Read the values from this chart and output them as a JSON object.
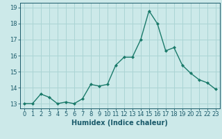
{
  "x": [
    0,
    1,
    2,
    3,
    4,
    5,
    6,
    7,
    8,
    9,
    10,
    11,
    12,
    13,
    14,
    15,
    16,
    17,
    18,
    19,
    20,
    21,
    22,
    23
  ],
  "y": [
    13.0,
    13.0,
    13.6,
    13.4,
    13.0,
    13.1,
    13.0,
    13.3,
    14.2,
    14.1,
    14.2,
    15.4,
    15.9,
    15.9,
    17.0,
    18.8,
    18.0,
    16.3,
    16.5,
    15.4,
    14.9,
    14.5,
    14.3,
    13.9
  ],
  "line_color": "#1a7a6a",
  "marker": "D",
  "marker_size": 2,
  "bg_color": "#cce9e9",
  "grid_color": "#aad4d4",
  "xlabel": "Humidex (Indice chaleur)",
  "xlim": [
    -0.5,
    23.5
  ],
  "ylim": [
    12.7,
    19.3
  ],
  "yticks": [
    13,
    14,
    15,
    16,
    17,
    18,
    19
  ],
  "xticks": [
    0,
    1,
    2,
    3,
    4,
    5,
    6,
    7,
    8,
    9,
    10,
    11,
    12,
    13,
    14,
    15,
    16,
    17,
    18,
    19,
    20,
    21,
    22,
    23
  ],
  "tick_color": "#1a5a6a",
  "label_fontsize": 6,
  "xlabel_fontsize": 7,
  "xlabel_fontweight": "bold",
  "linewidth": 1.0
}
